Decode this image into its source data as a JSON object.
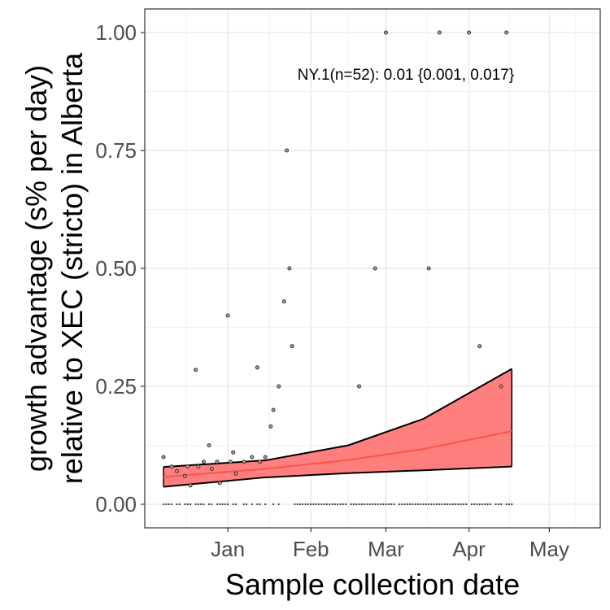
{
  "chart_data": {
    "type": "scatter",
    "xlabel": "Sample collection date",
    "ylabel_lines": [
      "growth advantage (s% per day)",
      "relative to XEC (stricto) in Alberta"
    ],
    "annotation": "NY.1(n=52): 0.01 {0.001, 0.017}",
    "x_ticks": [
      {
        "label": "Jan",
        "date": "2025-01-01"
      },
      {
        "label": "Feb",
        "date": "2025-02-01"
      },
      {
        "label": "Mar",
        "date": "2025-03-01"
      },
      {
        "label": "Apr",
        "date": "2025-04-01"
      },
      {
        "label": "May",
        "date": "2025-05-01"
      }
    ],
    "y_ticks": [
      "0.00",
      "0.25",
      "0.50",
      "0.75",
      "1.00"
    ],
    "xlim": [
      "2024-12-01",
      "2025-05-20"
    ],
    "ylim": [
      -0.05,
      1.05
    ],
    "grid": true,
    "colors": {
      "fit_line": "#f8554a",
      "band_fill": "#ff7f7f",
      "band_edge": "#000000",
      "point_fill": "#d98f8f",
      "point_stroke": "#333333"
    },
    "fit": {
      "x": [
        "2024-12-08",
        "2025-01-15",
        "2025-02-15",
        "2025-03-15",
        "2025-04-17"
      ],
      "y": [
        0.058,
        0.075,
        0.094,
        0.117,
        0.155
      ],
      "lower": [
        0.037,
        0.057,
        0.066,
        0.072,
        0.08
      ],
      "upper": [
        0.079,
        0.093,
        0.125,
        0.181,
        0.287
      ]
    },
    "points": [
      {
        "x": "2024-12-08",
        "y": 0.1
      },
      {
        "x": "2024-12-11",
        "y": 0.08
      },
      {
        "x": "2024-12-13",
        "y": 0.07
      },
      {
        "x": "2024-12-16",
        "y": 0.06
      },
      {
        "x": "2024-12-17",
        "y": 0.08
      },
      {
        "x": "2024-12-18",
        "y": 0.04
      },
      {
        "x": "2024-12-20",
        "y": 0.285
      },
      {
        "x": "2024-12-21",
        "y": 0.08
      },
      {
        "x": "2024-12-23",
        "y": 0.09
      },
      {
        "x": "2024-12-25",
        "y": 0.125
      },
      {
        "x": "2024-12-26",
        "y": 0.075
      },
      {
        "x": "2024-12-28",
        "y": 0.09
      },
      {
        "x": "2024-12-29",
        "y": 0.045
      },
      {
        "x": "2025-01-01",
        "y": 0.4
      },
      {
        "x": "2025-01-02",
        "y": 0.09
      },
      {
        "x": "2025-01-03",
        "y": 0.11
      },
      {
        "x": "2025-01-04",
        "y": 0.065
      },
      {
        "x": "2025-01-07",
        "y": 0.09
      },
      {
        "x": "2025-01-10",
        "y": 0.1
      },
      {
        "x": "2025-01-12",
        "y": 0.29
      },
      {
        "x": "2025-01-13",
        "y": 0.09
      },
      {
        "x": "2025-01-15",
        "y": 0.1
      },
      {
        "x": "2025-01-17",
        "y": 0.165
      },
      {
        "x": "2025-01-18",
        "y": 0.2
      },
      {
        "x": "2025-01-20",
        "y": 0.25
      },
      {
        "x": "2025-01-22",
        "y": 0.43
      },
      {
        "x": "2025-01-23",
        "y": 0.75
      },
      {
        "x": "2025-01-24",
        "y": 0.5
      },
      {
        "x": "2025-01-25",
        "y": 0.335
      },
      {
        "x": "2025-02-19",
        "y": 0.25
      },
      {
        "x": "2025-02-25",
        "y": 0.5
      },
      {
        "x": "2025-03-01",
        "y": 1.0
      },
      {
        "x": "2025-03-17",
        "y": 0.5
      },
      {
        "x": "2025-03-21",
        "y": 1.0
      },
      {
        "x": "2025-04-01",
        "y": 1.0
      },
      {
        "x": "2025-04-05",
        "y": 0.335
      },
      {
        "x": "2025-04-13",
        "y": 0.25
      },
      {
        "x": "2025-04-15",
        "y": 1.0
      }
    ],
    "zero_rug": {
      "start": "2024-12-08",
      "end": "2025-04-17",
      "gap_dates": [
        "2024-12-12",
        "2024-12-15",
        "2024-12-19",
        "2024-12-24",
        "2024-12-27",
        "2025-01-02",
        "2025-01-05",
        "2025-01-06",
        "2025-01-09",
        "2025-01-11",
        "2025-01-14",
        "2025-01-16",
        "2025-01-17",
        "2025-01-19",
        "2025-01-21",
        "2025-01-22",
        "2025-01-23",
        "2025-01-24",
        "2025-01-25",
        "2025-02-15",
        "2025-03-05",
        "2025-04-01",
        "2025-04-10",
        "2025-04-14"
      ]
    }
  }
}
